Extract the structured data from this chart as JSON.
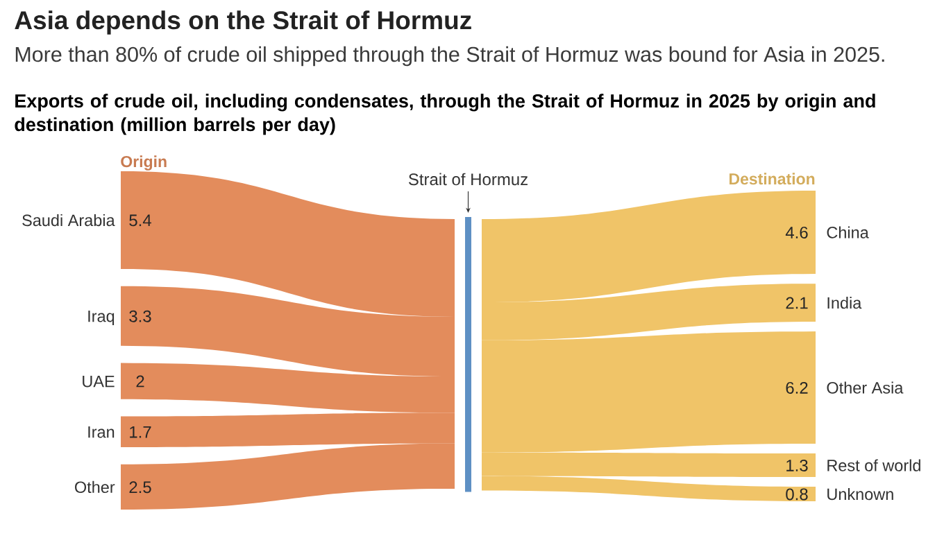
{
  "chart_data": {
    "type": "other",
    "title": "Asia depends on the Strait of Hormuz",
    "subtitle": "More than 80% of crude oil shipped through the Strait of Hormuz was bound for Asia in 2025.",
    "annotations": [
      "Exports of crude oil, including condensates, through the Strait of Hormuz in 2025 by origin and destination (million barrels per day)",
      "Strait of Hormuz"
    ],
    "categories": [
      "Saudi Arabia",
      "Iraq",
      "UAE",
      "Iran",
      "Other",
      "China",
      "India",
      "Other Asia",
      "Rest of world",
      "Unknown"
    ],
    "series": [
      {
        "name": "Origin",
        "color": "#e38c5c",
        "values": [
          5.4,
          3.3,
          2,
          1.7,
          2.5,
          null,
          null,
          null,
          null,
          null
        ]
      },
      {
        "name": "Destination",
        "color": "#f0c468",
        "values": [
          null,
          null,
          null,
          null,
          null,
          4.6,
          2.1,
          6.2,
          1.3,
          0.8
        ]
      }
    ],
    "data_labels": true
  }
}
